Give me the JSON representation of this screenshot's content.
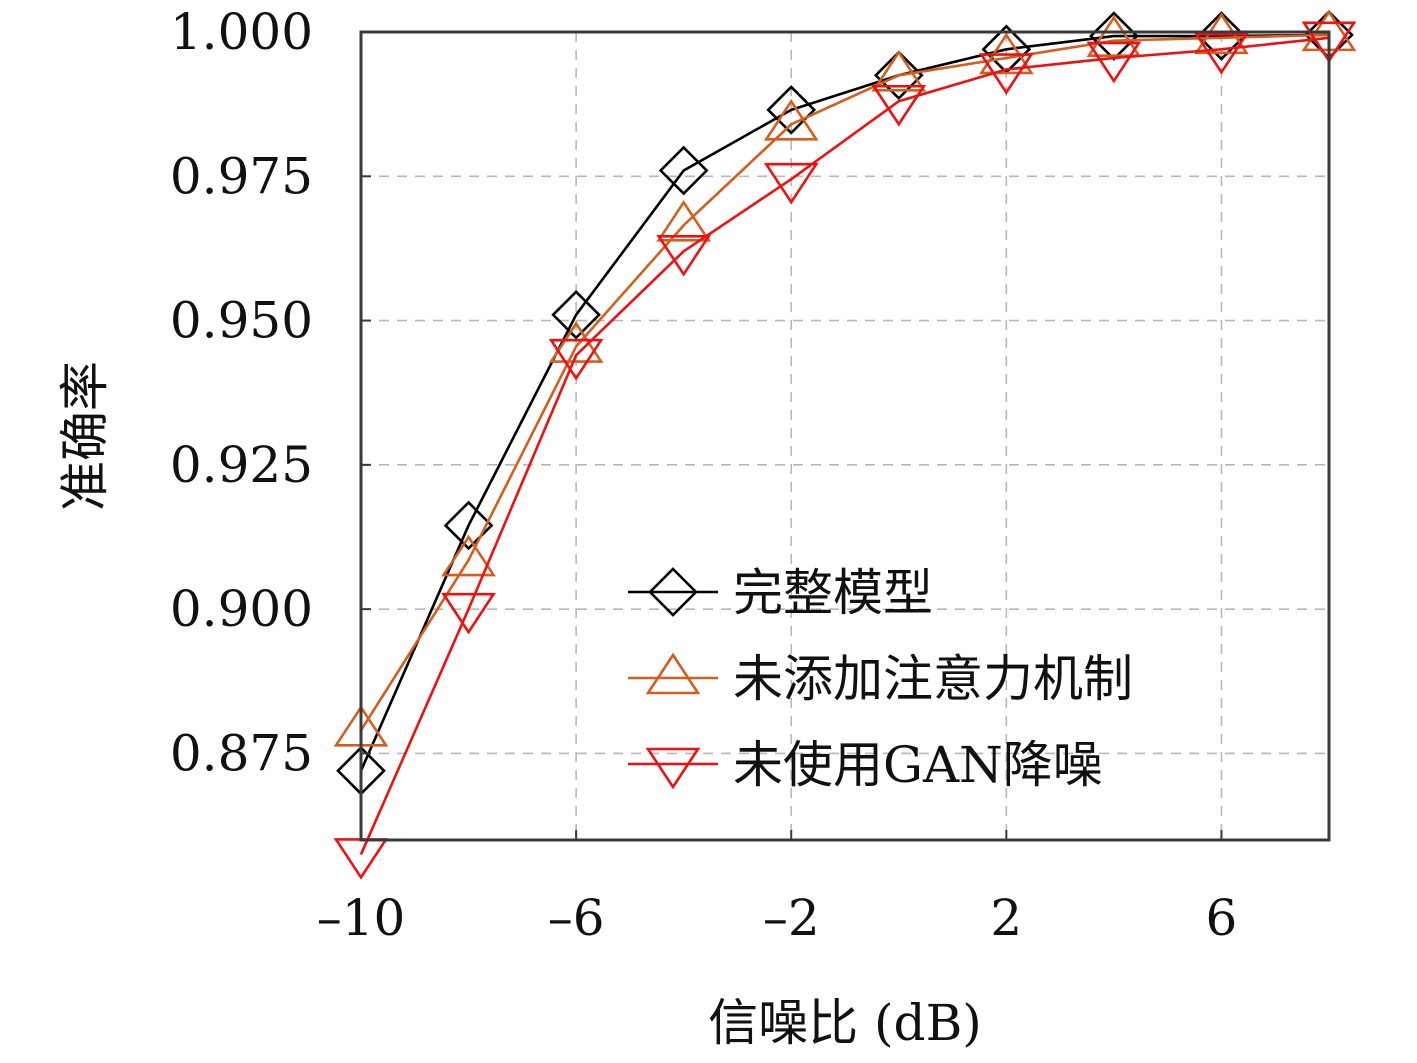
{
  "chart_data": {
    "type": "line",
    "xlabel": "信噪比 (dB)",
    "ylabel": "准确率",
    "xlim": [
      -10,
      8
    ],
    "ylim": [
      0.86,
      1.0
    ],
    "x_ticks": [
      -10,
      -6,
      -2,
      2,
      6
    ],
    "x_tick_labels": [
      "–10",
      "–6",
      "–2",
      "2",
      "6"
    ],
    "y_ticks": [
      0.875,
      0.9,
      0.925,
      0.95,
      0.975,
      1.0
    ],
    "y_tick_labels": [
      "0.875",
      "0.900",
      "0.925",
      "0.950",
      "0.975",
      "1.000"
    ],
    "grid": true,
    "legend_position": "bottom-right",
    "x": [
      -10,
      -8,
      -6,
      -4,
      -2,
      0,
      2,
      4,
      6,
      8
    ],
    "series": [
      {
        "name": "完整模型",
        "color": "#000000",
        "marker": "diamond",
        "values": [
          0.872,
          0.9145,
          0.951,
          0.976,
          0.9865,
          0.9925,
          0.997,
          0.9993,
          0.9993,
          0.9995
        ]
      },
      {
        "name": "未添加注意力机制",
        "color": "#d35f1e",
        "marker": "triangle-up",
        "values": [
          0.879,
          0.9085,
          0.9455,
          0.9665,
          0.984,
          0.9925,
          0.9955,
          0.9985,
          0.999,
          0.9995
        ]
      },
      {
        "name": "未使用GAN降噪",
        "color": "#ee1111",
        "marker": "triangle-down",
        "values": [
          0.8575,
          0.9,
          0.944,
          0.962,
          0.9745,
          0.988,
          0.9935,
          0.9955,
          0.997,
          0.999
        ]
      }
    ]
  }
}
